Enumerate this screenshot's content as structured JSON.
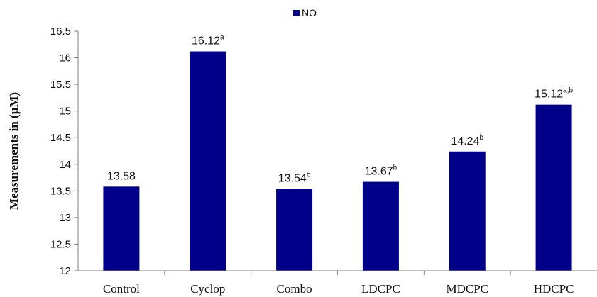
{
  "chart_data": {
    "type": "bar",
    "title": "",
    "xlabel": "",
    "ylabel": "Measurements in (μM)",
    "ylim": [
      12,
      16.5
    ],
    "yticks": [
      "12",
      "12.5",
      "13",
      "13.5",
      "14",
      "14.5",
      "15",
      "15.5",
      "16",
      "16.5"
    ],
    "categories": [
      "Control",
      "Cyclop",
      "Combo",
      "LDCPC",
      "MDCPC",
      "HDCPC"
    ],
    "series": [
      {
        "name": "NO",
        "values": [
          13.58,
          16.12,
          13.54,
          13.67,
          14.24,
          15.12
        ],
        "labels": [
          "13.58",
          "16.12",
          "13.54",
          "13.67",
          "14.24",
          "15.12"
        ],
        "superscripts": [
          "",
          "a",
          "b",
          "b",
          "b",
          "a,b"
        ]
      }
    ],
    "bar_color": "#00008b",
    "legend_position": "top-center",
    "grid": false
  }
}
